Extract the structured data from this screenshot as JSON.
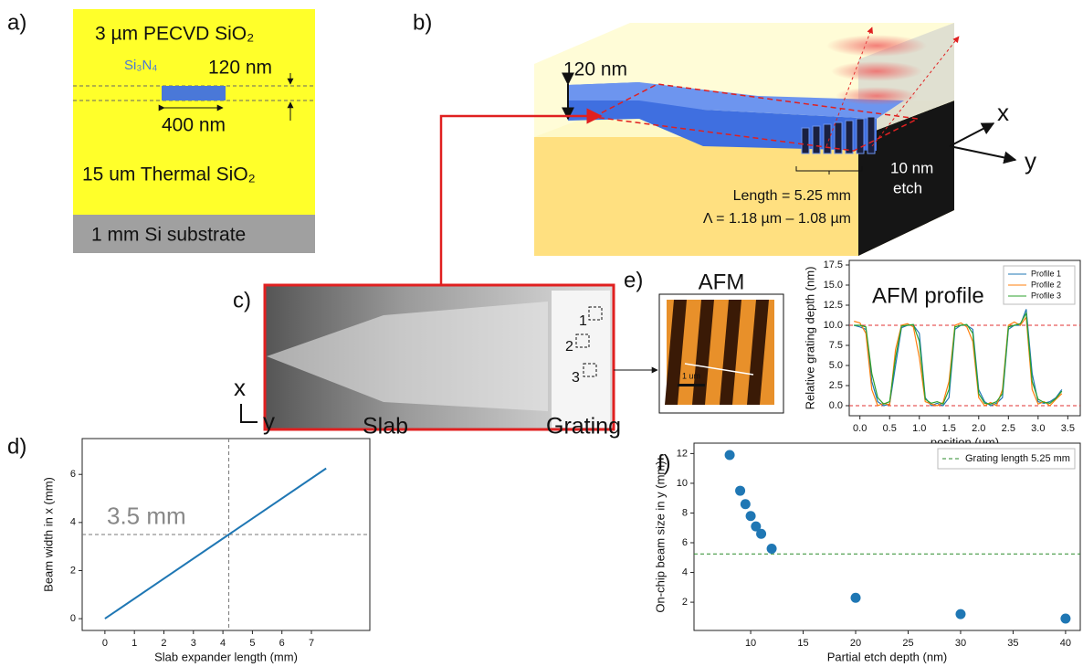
{
  "panels": {
    "a": {
      "label": "a)",
      "top_layer": "3 µm PECVD SiO₂",
      "core": "Si₃N₄",
      "thickness": "120 nm",
      "width": "400 nm",
      "bottom_layer": "15 um Thermal SiO₂",
      "substrate": "1 mm Si substrate"
    },
    "b": {
      "label": "b)",
      "thickness": "120 nm",
      "length": "Length = 5.25 mm",
      "period": "Λ = 1.18 µm – 1.08 µm",
      "etch_depth": "10 nm",
      "etch": "etch",
      "axis_x": "x",
      "axis_y": "y"
    },
    "c": {
      "label": "c)",
      "markers": [
        "1",
        "2",
        "3"
      ],
      "axis_x": "x",
      "axis_y": "y",
      "slab": "Slab",
      "grating": "Grating"
    },
    "e": {
      "label": "e)",
      "afm": "AFM",
      "scale": "1 um"
    },
    "d": {
      "label": "d)",
      "annotation": "3.5 mm"
    },
    "f": {
      "label": "f)"
    }
  },
  "chart_data": [
    {
      "type": "line",
      "xlabel": "Slab expander length (mm)",
      "ylabel": "Beam width in x (mm)",
      "x": [
        0,
        7.5
      ],
      "values": [
        0,
        6.25
      ],
      "color": "#1f77b4",
      "xlim": [
        -0.77,
        8.98
      ],
      "ylim": [
        -0.49,
        7.49
      ],
      "xticks": [
        0,
        1,
        2,
        3,
        4,
        5,
        6,
        7
      ],
      "yticks": [
        0,
        2,
        4,
        6
      ],
      "ref_lines": [
        {
          "axis": "x",
          "value": 4.2,
          "color": "#777777"
        },
        {
          "axis": "y",
          "value": 3.5,
          "color": "#777777"
        }
      ]
    },
    {
      "type": "line",
      "title": "AFM profile",
      "xlabel": "position (um)",
      "ylabel": "Relative grating depth (nm)",
      "x": [
        -0.1,
        0,
        0.1,
        0.2,
        0.3,
        0.4,
        0.5,
        0.6,
        0.7,
        0.8,
        0.9,
        1,
        1.1,
        1.2,
        1.3,
        1.4,
        1.5,
        1.6,
        1.7,
        1.8,
        1.9,
        2,
        2.1,
        2.2,
        2.3,
        2.4,
        2.5,
        2.6,
        2.7,
        2.8,
        2.9,
        3,
        3.1,
        3.2,
        3.3,
        3.4
      ],
      "series": [
        {
          "name": "Profile 1",
          "color": "#1f77b4",
          "values": [
            10,
            9.8,
            9.5,
            3,
            0.5,
            0,
            0.2,
            5,
            9.7,
            10,
            10,
            9,
            1,
            0,
            0.3,
            0,
            1,
            9.5,
            10,
            10,
            9.5,
            2,
            0.5,
            0,
            0.3,
            1,
            9.5,
            10,
            10,
            12,
            4,
            0.5,
            0.3,
            0.5,
            1,
            2
          ]
        },
        {
          "name": "Profile 2",
          "color": "#ff7f0e",
          "values": [
            10.5,
            10.3,
            9,
            2,
            0,
            0.3,
            0.1,
            7,
            10,
            10.2,
            9.8,
            6,
            0.5,
            0.2,
            0,
            0.4,
            3,
            10,
            10.3,
            9.8,
            8,
            1,
            0,
            0.4,
            0,
            2,
            10,
            10.4,
            10,
            11,
            2,
            0.2,
            0.5,
            0,
            0.8,
            1.5
          ]
        },
        {
          "name": "Profile 3",
          "color": "#2ca02c",
          "values": [
            10,
            10,
            9.8,
            4,
            1,
            0.2,
            0.5,
            6,
            9.9,
            10,
            10.1,
            8,
            0.8,
            0.3,
            0.5,
            0.2,
            2,
            9.8,
            10,
            10.1,
            9,
            1.5,
            0.3,
            0.2,
            0.5,
            1.5,
            9.8,
            10,
            10.2,
            11.5,
            3,
            0.8,
            0.4,
            0.3,
            0.9,
            1.8
          ]
        }
      ],
      "xlim": [
        -0.18,
        3.71
      ],
      "ylim": [
        -1.25,
        18.07
      ],
      "xticks": [
        {
          "value": 0,
          "label": "0.0"
        },
        0.5,
        {
          "value": 1,
          "label": "1.0"
        },
        1.5,
        {
          "value": 2,
          "label": "2.0"
        },
        2.5,
        {
          "value": 3,
          "label": "3.0"
        },
        3.5
      ],
      "yticks": [
        {
          "value": 0,
          "label": "0.0"
        },
        2.5,
        {
          "value": 5,
          "label": "5.0"
        },
        7.5,
        {
          "value": 10,
          "label": "10.0"
        },
        12.5,
        {
          "value": 15,
          "label": "15.0"
        },
        17.5
      ],
      "ref_lines": [
        {
          "axis": "y",
          "value": 10,
          "color": "#e03030"
        },
        {
          "axis": "y",
          "value": 0,
          "color": "#e03030"
        }
      ],
      "legend": "upper right"
    },
    {
      "type": "scatter",
      "xlabel": "Partial etch depth (nm)",
      "ylabel": "On-chip beam size in y (mm)",
      "x": [
        8,
        9,
        9.5,
        10,
        10.5,
        11,
        12,
        20,
        30,
        40
      ],
      "values": [
        11.9,
        9.5,
        8.6,
        7.8,
        7.1,
        6.6,
        5.6,
        2.3,
        1.2,
        0.9
      ],
      "color": "#1f77b4",
      "xlim": [
        4.6,
        41.4
      ],
      "ylim": [
        0.1,
        12.7
      ],
      "xticks": [
        10,
        15,
        20,
        25,
        30,
        35,
        40
      ],
      "yticks": [
        2,
        4,
        6,
        8,
        10,
        12
      ],
      "ref_lines": [
        {
          "axis": "y",
          "value": 5.25,
          "color": "#2a8a2a",
          "name": "Grating length 5.25 mm"
        }
      ],
      "legend": "upper right"
    }
  ]
}
